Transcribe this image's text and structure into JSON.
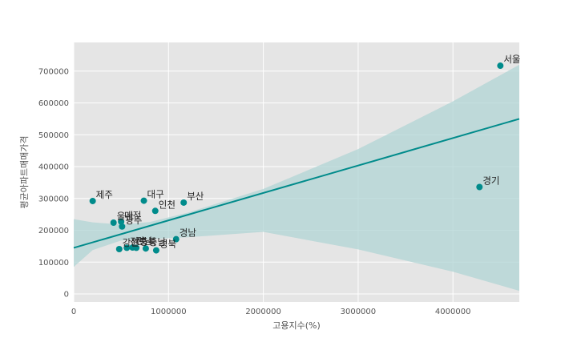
{
  "chart_data": {
    "type": "scatter",
    "title": "",
    "xlabel": "고용지수(%)",
    "ylabel": "평균아파트매매가격",
    "xlim": [
      0,
      4700000
    ],
    "ylim": [
      -25000,
      790000
    ],
    "x_ticks": [
      0,
      1000000,
      2000000,
      3000000,
      4000000
    ],
    "x_tick_labels": [
      "0",
      "1000000",
      "2000000",
      "3000000",
      "4000000"
    ],
    "y_ticks": [
      0,
      100000,
      200000,
      300000,
      400000,
      500000,
      600000,
      700000
    ],
    "y_tick_labels": [
      "0",
      "100000",
      "200000",
      "300000",
      "400000",
      "500000",
      "600000",
      "700000"
    ],
    "grid": true,
    "colors": {
      "background": "#e5e5e5",
      "grid": "#ffffff",
      "point": "#008b8b",
      "line": "#008b8b",
      "band": "#b0d4d4"
    },
    "points": [
      {
        "label": "서울",
        "x": 4500000,
        "y": 717000
      },
      {
        "label": "경기",
        "x": 4280000,
        "y": 336000
      },
      {
        "label": "부산",
        "x": 1160000,
        "y": 287000
      },
      {
        "label": "대구",
        "x": 740000,
        "y": 293000
      },
      {
        "label": "인천",
        "x": 860000,
        "y": 261000
      },
      {
        "label": "제주",
        "x": 200000,
        "y": 292000
      },
      {
        "label": "울산",
        "x": 420000,
        "y": 224000
      },
      {
        "label": "대전",
        "x": 500000,
        "y": 227000
      },
      {
        "label": "광주",
        "x": 510000,
        "y": 212000
      },
      {
        "label": "경남",
        "x": 1080000,
        "y": 172000
      },
      {
        "label": "강원",
        "x": 480000,
        "y": 141000
      },
      {
        "label": "전북",
        "x": 560000,
        "y": 145000
      },
      {
        "label": "전남",
        "x": 620000,
        "y": 146000
      },
      {
        "label": "충북",
        "x": 660000,
        "y": 145000
      },
      {
        "label": "충남",
        "x": 760000,
        "y": 143000
      },
      {
        "label": "경북",
        "x": 870000,
        "y": 137000
      }
    ],
    "regression": {
      "x": [
        0,
        4700000
      ],
      "y": [
        145000,
        550000
      ]
    },
    "confidence_band": {
      "x": [
        0,
        200000,
        500000,
        800000,
        1200000,
        2000000,
        3000000,
        4000000,
        4700000
      ],
      "upper": [
        235000,
        225000,
        218000,
        226000,
        255000,
        330000,
        455000,
        605000,
        720000
      ],
      "lower": [
        85000,
        138000,
        168000,
        172000,
        178000,
        195000,
        140000,
        70000,
        10000
      ]
    }
  }
}
